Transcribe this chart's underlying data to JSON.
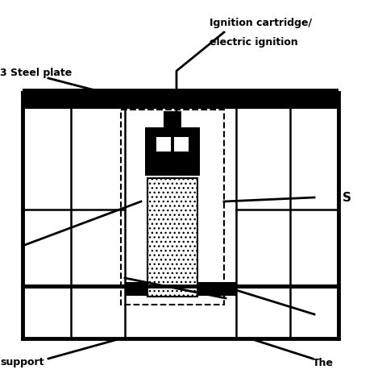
{
  "bg_color": "#ffffff",
  "lc": "#000000",
  "labels": {
    "ignition_line1": "Ignition cartridge/",
    "ignition_line2": "electric ignition",
    "steel_plate": "3 Steel plate",
    "support": "support",
    "thermocouple": "The",
    "s_label": "S"
  },
  "figsize": [
    4.74,
    4.74
  ],
  "dpi": 100
}
